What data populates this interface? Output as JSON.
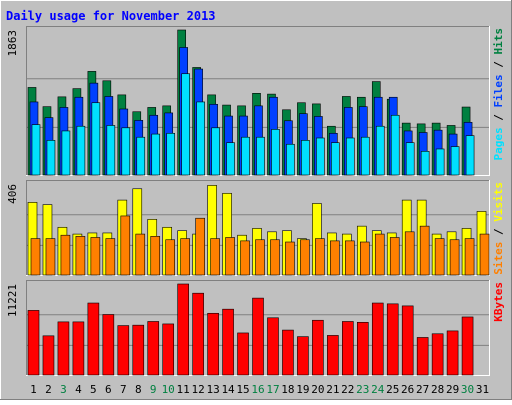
{
  "title": "Daily usage for November 2013",
  "colors": {
    "background": "#c0c0c0",
    "panel_bg": "#c0c0c0",
    "title": "#0000ff",
    "hits": "#008040",
    "files": "#0040ff",
    "pages": "#00e0ff",
    "visits": "#ffff00",
    "sites": "#ff8000",
    "kbytes": "#ff0000",
    "day_weekday": "#000000",
    "day_weekend": "#008040"
  },
  "chart_data": [
    {
      "type": "bar",
      "panel": "top",
      "ymax_label": "1863",
      "ymax": 1863,
      "right_label_parts": [
        {
          "text": "Pages",
          "color": "#00e0ff"
        },
        {
          "text": " / ",
          "color": "#000000"
        },
        {
          "text": "Files",
          "color": "#0040ff"
        },
        {
          "text": " / ",
          "color": "#000000"
        },
        {
          "text": "Hits",
          "color": "#008040"
        }
      ],
      "categories": [
        "1",
        "2",
        "3",
        "4",
        "5",
        "6",
        "7",
        "8",
        "9",
        "10",
        "11",
        "12",
        "13",
        "14",
        "15",
        "16",
        "17",
        "18",
        "19",
        "20",
        "21",
        "22",
        "23",
        "24",
        "25",
        "26",
        "27",
        "28",
        "29",
        "30",
        "31"
      ],
      "series": [
        {
          "name": "Hits",
          "color": "#008040",
          "values": [
            1130,
            885,
            1010,
            1115,
            1335,
            1215,
            1035,
            820,
            875,
            895,
            1863,
            1385,
            1035,
            905,
            895,
            1055,
            1045,
            845,
            935,
            920,
            635,
            1015,
            1005,
            1205,
            980,
            675,
            665,
            675,
            645,
            880,
            0
          ]
        },
        {
          "name": "Files",
          "color": "#0040ff",
          "values": [
            945,
            745,
            875,
            1005,
            1185,
            1015,
            855,
            710,
            775,
            805,
            1640,
            1365,
            915,
            765,
            765,
            895,
            1005,
            705,
            795,
            760,
            545,
            875,
            885,
            1005,
            1005,
            575,
            555,
            585,
            535,
            685,
            0
          ]
        },
        {
          "name": "Pages",
          "color": "#00e0ff",
          "values": [
            655,
            455,
            575,
            635,
            935,
            645,
            615,
            495,
            535,
            545,
            1305,
            945,
            615,
            425,
            495,
            495,
            595,
            405,
            455,
            485,
            425,
            485,
            495,
            635,
            775,
            425,
            315,
            345,
            375,
            515,
            0
          ]
        }
      ]
    },
    {
      "type": "bar",
      "panel": "middle",
      "ymax_label": "406",
      "ymax": 406,
      "right_label_parts": [
        {
          "text": "Sites",
          "color": "#ff8000"
        },
        {
          "text": " / ",
          "color": "#000000"
        },
        {
          "text": "Visits",
          "color": "#ffff00"
        }
      ],
      "categories": [
        "1",
        "2",
        "3",
        "4",
        "5",
        "6",
        "7",
        "8",
        "9",
        "10",
        "11",
        "12",
        "13",
        "14",
        "15",
        "16",
        "17",
        "18",
        "19",
        "20",
        "21",
        "22",
        "23",
        "24",
        "25",
        "26",
        "27",
        "28",
        "29",
        "30",
        "31"
      ],
      "series": [
        {
          "name": "Visits",
          "color": "#ffff00",
          "values": [
            325,
            315,
            215,
            185,
            190,
            190,
            335,
            385,
            250,
            215,
            200,
            185,
            400,
            365,
            180,
            210,
            195,
            200,
            165,
            320,
            190,
            185,
            220,
            200,
            190,
            335,
            335,
            185,
            195,
            210,
            285
          ]
        },
        {
          "name": "Sites",
          "color": "#ff8000",
          "values": [
            165,
            165,
            180,
            175,
            170,
            165,
            265,
            185,
            175,
            160,
            165,
            255,
            165,
            170,
            155,
            160,
            160,
            150,
            160,
            165,
            155,
            155,
            150,
            185,
            170,
            195,
            220,
            165,
            160,
            165,
            185
          ]
        }
      ]
    },
    {
      "type": "bar",
      "panel": "bottom",
      "ymax_label": "11221",
      "ymax": 11221,
      "right_label_parts": [
        {
          "text": "KBytes",
          "color": "#ff0000"
        }
      ],
      "categories": [
        "1",
        "2",
        "3",
        "4",
        "5",
        "6",
        "7",
        "8",
        "9",
        "10",
        "11",
        "12",
        "13",
        "14",
        "15",
        "16",
        "17",
        "18",
        "19",
        "20",
        "21",
        "22",
        "23",
        "24",
        "25",
        "26",
        "27",
        "28",
        "29",
        "30",
        "31"
      ],
      "series": [
        {
          "name": "KBytes",
          "color": "#ff0000",
          "values": [
            8000,
            4900,
            6600,
            6600,
            8900,
            7500,
            6150,
            6200,
            6650,
            6350,
            11221,
            10100,
            7650,
            8150,
            5250,
            9500,
            7100,
            5600,
            4800,
            6800,
            4950,
            6650,
            6550,
            8900,
            8800,
            8550,
            4700,
            5150,
            5500,
            7200,
            0
          ]
        }
      ]
    }
  ],
  "days": [
    {
      "label": "1",
      "weekend": false
    },
    {
      "label": "2",
      "weekend": false
    },
    {
      "label": "3",
      "weekend": true
    },
    {
      "label": "4",
      "weekend": false
    },
    {
      "label": "5",
      "weekend": false
    },
    {
      "label": "6",
      "weekend": false
    },
    {
      "label": "7",
      "weekend": false
    },
    {
      "label": "8",
      "weekend": false
    },
    {
      "label": "9",
      "weekend": true
    },
    {
      "label": "10",
      "weekend": true
    },
    {
      "label": "11",
      "weekend": false
    },
    {
      "label": "12",
      "weekend": false
    },
    {
      "label": "13",
      "weekend": false
    },
    {
      "label": "14",
      "weekend": false
    },
    {
      "label": "15",
      "weekend": false
    },
    {
      "label": "16",
      "weekend": true
    },
    {
      "label": "17",
      "weekend": true
    },
    {
      "label": "18",
      "weekend": false
    },
    {
      "label": "19",
      "weekend": false
    },
    {
      "label": "20",
      "weekend": false
    },
    {
      "label": "21",
      "weekend": false
    },
    {
      "label": "22",
      "weekend": false
    },
    {
      "label": "23",
      "weekend": true
    },
    {
      "label": "24",
      "weekend": true
    },
    {
      "label": "25",
      "weekend": false
    },
    {
      "label": "26",
      "weekend": false
    },
    {
      "label": "27",
      "weekend": false
    },
    {
      "label": "28",
      "weekend": false
    },
    {
      "label": "29",
      "weekend": false
    },
    {
      "label": "30",
      "weekend": true
    },
    {
      "label": "31",
      "weekend": false
    }
  ]
}
